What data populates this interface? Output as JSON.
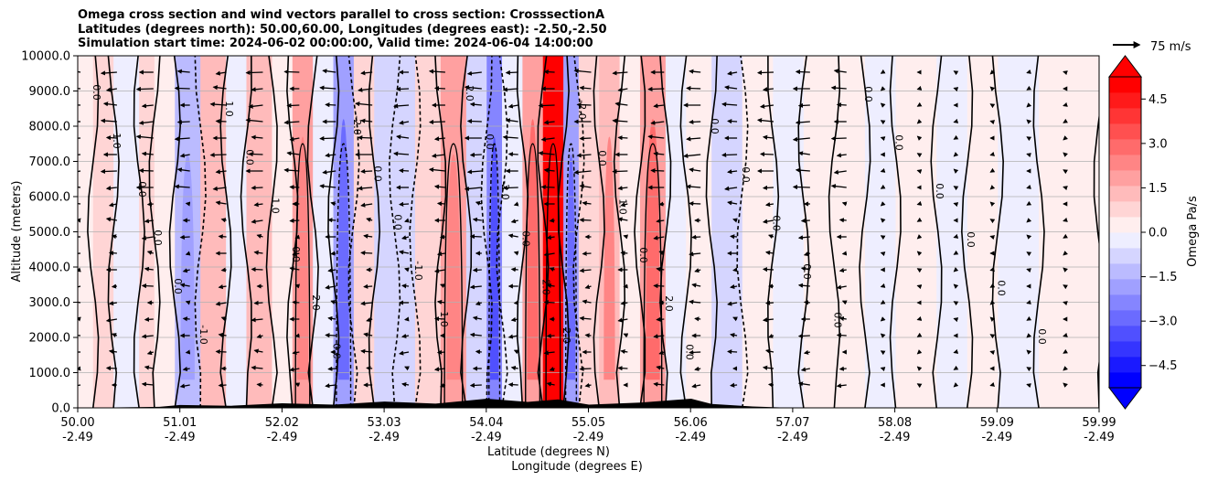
{
  "chart_data": {
    "type": "heatmap",
    "title_lines": [
      "Omega cross section and wind vectors parallel to cross section: CrosssectionA",
      "Latitudes (degrees north): 50.00,60.00, Longitudes (degrees east): -2.50,-2.50",
      "Simulation start time: 2024-06-02 00:00:00, Valid time: 2024-06-04 14:00:00"
    ],
    "xlabel": "Latitude (degrees N)",
    "xlabel2": "Longitude (degrees E)",
    "ylabel": "Altitude (meters)",
    "xlim": [
      50.0,
      59.99
    ],
    "ylim": [
      0,
      10000
    ],
    "grid": "horizontal",
    "x_ticks": [
      {
        "lat": "50.00",
        "lon": "-2.49"
      },
      {
        "lat": "51.01",
        "lon": "-2.49"
      },
      {
        "lat": "52.02",
        "lon": "-2.49"
      },
      {
        "lat": "53.03",
        "lon": "-2.49"
      },
      {
        "lat": "54.04",
        "lon": "-2.49"
      },
      {
        "lat": "55.05",
        "lon": "-2.49"
      },
      {
        "lat": "56.06",
        "lon": "-2.49"
      },
      {
        "lat": "57.07",
        "lon": "-2.49"
      },
      {
        "lat": "58.08",
        "lon": "-2.49"
      },
      {
        "lat": "59.09",
        "lon": "-2.49"
      },
      {
        "lat": "59.99",
        "lon": "-2.49"
      }
    ],
    "y_ticks": [
      "0.0",
      "1000.0",
      "2000.0",
      "3000.0",
      "4000.0",
      "5000.0",
      "6000.0",
      "7000.0",
      "8000.0",
      "9000.0",
      "10000.0"
    ],
    "colorbar": {
      "label": "Omega Pa/s",
      "range": [
        -5.25,
        5.25
      ],
      "extend": "both",
      "ticks": [
        "−4.5",
        "−3.0",
        "−1.5",
        "0.0",
        "1.5",
        "3.0",
        "4.5"
      ],
      "colors": [
        "#0000ff",
        "#1a1aff",
        "#3535ff",
        "#5050ff",
        "#6b6bff",
        "#8585ff",
        "#a0a0ff",
        "#bbbbff",
        "#d5d5ff",
        "#eeeeff",
        "#ffeeee",
        "#ffd5d5",
        "#ffbbbb",
        "#ffa0a0",
        "#ff8585",
        "#ff6b6b",
        "#ff5050",
        "#ff3535",
        "#ff1a1a",
        "#ff0000"
      ],
      "under_color": "#0000ff",
      "over_color": "#ff0000"
    },
    "bands": [
      {
        "x": [
          50.0,
          50.15
        ],
        "v": 0.5
      },
      {
        "x": [
          50.15,
          50.35
        ],
        "v": 1.0
      },
      {
        "x": [
          50.35,
          50.6
        ],
        "v": -0.3
      },
      {
        "x": [
          50.6,
          50.75
        ],
        "v": 0.6
      },
      {
        "x": [
          50.75,
          50.95
        ],
        "v": 0.3
      },
      {
        "x": [
          50.95,
          51.2
        ],
        "v": -1.4
      },
      {
        "x": [
          51.2,
          51.45
        ],
        "v": 1.2
      },
      {
        "x": [
          51.45,
          51.65
        ],
        "v": -0.4
      },
      {
        "x": [
          51.65,
          51.9
        ],
        "v": 1.1
      },
      {
        "x": [
          51.9,
          52.1
        ],
        "v": 0.4
      },
      {
        "x": [
          52.1,
          52.3
        ],
        "v": 1.6
      },
      {
        "x": [
          52.3,
          52.5
        ],
        "v": -0.4
      },
      {
        "x": [
          52.5,
          52.7
        ],
        "v": -1.8
      },
      {
        "x": [
          52.7,
          52.9
        ],
        "v": 0.7
      },
      {
        "x": [
          52.9,
          53.1
        ],
        "v": -0.6
      },
      {
        "x": [
          53.1,
          53.3
        ],
        "v": -0.9
      },
      {
        "x": [
          53.3,
          53.55
        ],
        "v": 0.8
      },
      {
        "x": [
          53.55,
          53.8
        ],
        "v": 1.6
      },
      {
        "x": [
          53.8,
          54.0
        ],
        "v": -0.7
      },
      {
        "x": [
          54.0,
          54.15
        ],
        "v": -2.2
      },
      {
        "x": [
          54.15,
          54.35
        ],
        "v": -0.5
      },
      {
        "x": [
          54.35,
          54.55
        ],
        "v": 2.0
      },
      {
        "x": [
          54.55,
          54.75
        ],
        "v": 5.4
      },
      {
        "x": [
          54.75,
          54.9
        ],
        "v": -1.8
      },
      {
        "x": [
          54.9,
          55.1
        ],
        "v": 0.6
      },
      {
        "x": [
          55.1,
          55.3
        ],
        "v": 1.5
      },
      {
        "x": [
          55.3,
          55.5
        ],
        "v": 0.3
      },
      {
        "x": [
          55.5,
          55.75
        ],
        "v": 1.9
      },
      {
        "x": [
          55.75,
          55.95
        ],
        "v": -0.5
      },
      {
        "x": [
          55.95,
          56.2
        ],
        "v": 0.4
      },
      {
        "x": [
          56.2,
          56.5
        ],
        "v": -0.6
      },
      {
        "x": [
          56.5,
          56.8
        ],
        "v": 0.5
      },
      {
        "x": [
          56.8,
          57.1
        ],
        "v": -0.3
      },
      {
        "x": [
          57.1,
          57.4
        ],
        "v": 0.3
      },
      {
        "x": [
          57.4,
          57.7
        ],
        "v": 0.2
      },
      {
        "x": [
          57.7,
          58.0
        ],
        "v": -0.2
      },
      {
        "x": [
          58.0,
          58.4
        ],
        "v": 0.2
      },
      {
        "x": [
          58.4,
          58.7
        ],
        "v": -0.2
      },
      {
        "x": [
          58.7,
          59.0
        ],
        "v": 0.3
      },
      {
        "x": [
          59.0,
          59.4
        ],
        "v": -0.1
      },
      {
        "x": [
          59.4,
          59.99
        ],
        "v": 0.2
      }
    ],
    "contour_labels": [
      "0.0",
      "-1.0",
      "1.0",
      "2.0",
      "-2.0",
      "4.0",
      "3.0"
    ],
    "wind_vector_scale": {
      "label": "75 m/s",
      "value": 75
    }
  },
  "colors": {
    "grid": "#b0b0b0",
    "contour": "#000000",
    "terrain": "#000000"
  }
}
